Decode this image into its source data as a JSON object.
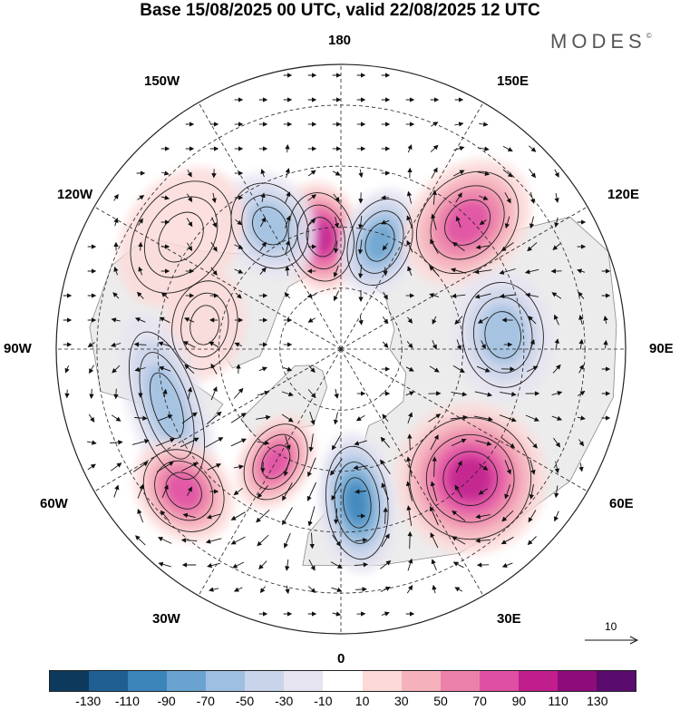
{
  "title": "Base 15/08/2025 00 UTC, valid 22/08/2025 12 UTC",
  "brand": {
    "name": "MODES",
    "mark": "©"
  },
  "longitude_labels": {
    "n180": "180",
    "w150": "150W",
    "e150": "150E",
    "w120": "120W",
    "e120": "120E",
    "w90": "90W",
    "e90": "90E",
    "w60": "60W",
    "e60": "60E",
    "w30": "30W",
    "e30": "30E",
    "s0": "0"
  },
  "reference_vector": {
    "value": "10"
  },
  "colorbar": {
    "colors": [
      "#0d3a5c",
      "#1f5f92",
      "#3c85bb",
      "#6aa3cf",
      "#9fbfe0",
      "#c9d4ea",
      "#e6e4f1",
      "#ffffff",
      "#fbdad9",
      "#f5b2bc",
      "#ec82a9",
      "#df4fa3",
      "#c01e8d",
      "#8e0b7c",
      "#5a0b6e"
    ],
    "ticks": [
      "-130",
      "-110",
      "-90",
      "-70",
      "-50",
      "-30",
      "-10",
      "10",
      "30",
      "50",
      "70",
      "90",
      "110",
      "130"
    ]
  },
  "anomaly_centers": [
    {
      "name": "anomaly-pacific-south",
      "lon": -170,
      "lat": 62,
      "value": 95,
      "rx": 0.4,
      "ry": 0.55
    },
    {
      "name": "anomaly-chukchi",
      "lon": 160,
      "lat": 62,
      "value": -70,
      "rx": 0.38,
      "ry": 0.55
    },
    {
      "name": "anomaly-bering-west",
      "lon": -150,
      "lat": 55,
      "value": -55,
      "rx": 0.45,
      "ry": 0.55
    },
    {
      "name": "anomaly-kamchatka",
      "lon": 135,
      "lat": 46,
      "value": 70,
      "rx": 0.55,
      "ry": 0.7
    },
    {
      "name": "anomaly-alaska",
      "lon": -125,
      "lat": 42,
      "value": 25,
      "rx": 0.75,
      "ry": 0.55
    },
    {
      "name": "anomaly-canada",
      "lon": -100,
      "lat": 56,
      "value": 25,
      "rx": 0.55,
      "ry": 0.4
    },
    {
      "name": "anomaly-siberia-east",
      "lon": 95,
      "lat": 50,
      "value": -55,
      "rx": 0.65,
      "ry": 0.5
    },
    {
      "name": "anomaly-hudson",
      "lon": -72,
      "lat": 45,
      "value": -60,
      "rx": 0.95,
      "ry": 0.38
    },
    {
      "name": "anomaly-ural",
      "lon": 45,
      "lat": 45,
      "value": 95,
      "rx": 0.75,
      "ry": 0.75
    },
    {
      "name": "anomaly-atlantic-west",
      "lon": -48,
      "lat": 38,
      "value": 85,
      "rx": 0.55,
      "ry": 0.45
    },
    {
      "name": "anomaly-greenland-sea",
      "lon": -30,
      "lat": 58,
      "value": 80,
      "rx": 0.35,
      "ry": 0.5
    },
    {
      "name": "anomaly-scandinavia",
      "lon": 6,
      "lat": 52,
      "value": -90,
      "rx": 0.38,
      "ry": 0.7
    }
  ]
}
